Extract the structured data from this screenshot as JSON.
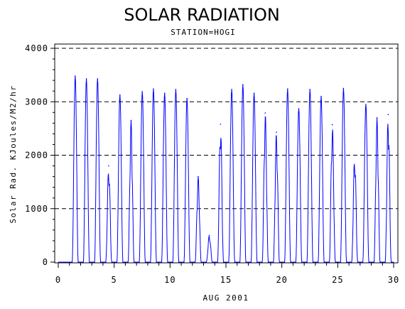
{
  "chart_data": {
    "type": "line",
    "title": "SOLAR RADIATION",
    "subtitle": "STATION=HOGI",
    "xlabel": "AUG 2001",
    "ylabel": "Solar Rad. KJoules/M2/hr",
    "xlim": [
      0,
      30
    ],
    "ylim": [
      0,
      4000
    ],
    "x_ticks": [
      0,
      5,
      10,
      15,
      20,
      25,
      30
    ],
    "y_ticks": [
      0,
      1000,
      2000,
      3000,
      4000
    ],
    "grid": "dashed horizontal at y ticks",
    "line_color": "#0000ff",
    "daily_peaks": [
      {
        "day": 1,
        "peak": 3480
      },
      {
        "day": 2,
        "peak": 3430
      },
      {
        "day": 3,
        "peak": 3430
      },
      {
        "day": 4,
        "peak": 1800
      },
      {
        "day": 5,
        "peak": 3130
      },
      {
        "day": 6,
        "peak": 2650
      },
      {
        "day": 7,
        "peak": 3190
      },
      {
        "day": 8,
        "peak": 3240
      },
      {
        "day": 9,
        "peak": 3160
      },
      {
        "day": 10,
        "peak": 3230
      },
      {
        "day": 11,
        "peak": 3060
      },
      {
        "day": 12,
        "peak": 1600
      },
      {
        "day": 13,
        "peak": 500
      },
      {
        "day": 14,
        "peak": 2580
      },
      {
        "day": 15,
        "peak": 3230
      },
      {
        "day": 16,
        "peak": 3320
      },
      {
        "day": 17,
        "peak": 3160
      },
      {
        "day": 18,
        "peak": 2790
      },
      {
        "day": 19,
        "peak": 2430
      },
      {
        "day": 20,
        "peak": 3240
      },
      {
        "day": 21,
        "peak": 2870
      },
      {
        "day": 22,
        "peak": 3230
      },
      {
        "day": 23,
        "peak": 3100
      },
      {
        "day": 24,
        "peak": 2570
      },
      {
        "day": 25,
        "peak": 3250
      },
      {
        "day": 26,
        "peak": 2000
      },
      {
        "day": 27,
        "peak": 2950
      },
      {
        "day": 28,
        "peak": 2700
      },
      {
        "day": 29,
        "peak": 2760
      }
    ]
  }
}
